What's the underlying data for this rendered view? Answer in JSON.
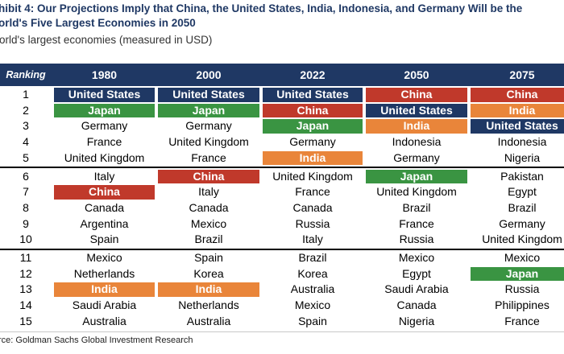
{
  "title": {
    "line1": "hibit 4: Our Projections Imply that China, the United States, India, Indonesia, and Germany Will be the",
    "line2": "orld's Five Largest Economies in 2050"
  },
  "subtitle": "orld's largest economies (measured in USD)",
  "source": "rce: Goldman Sachs Global Investment Research",
  "colors": {
    "header": "#1f3864",
    "United States": "#1f3864",
    "Japan": "#3a9442",
    "China": "#c0392b",
    "India": "#e9853a"
  },
  "chart_data": {
    "type": "table",
    "columns": [
      "Ranking",
      "1980",
      "2000",
      "2022",
      "2050",
      "2075"
    ],
    "rows": [
      [
        "1",
        "United States",
        "United States",
        "United States",
        "China",
        "China"
      ],
      [
        "2",
        "Japan",
        "Japan",
        "China",
        "United States",
        "India"
      ],
      [
        "3",
        "Germany",
        "Germany",
        "Japan",
        "India",
        "United States"
      ],
      [
        "4",
        "France",
        "United Kingdom",
        "Germany",
        "Indonesia",
        "Indonesia"
      ],
      [
        "5",
        "United Kingdom",
        "France",
        "India",
        "Germany",
        "Nigeria"
      ],
      [
        "6",
        "Italy",
        "China",
        "United Kingdom",
        "Japan",
        "Pakistan"
      ],
      [
        "7",
        "China",
        "Italy",
        "France",
        "United Kingdom",
        "Egypt"
      ],
      [
        "8",
        "Canada",
        "Canada",
        "Canada",
        "Brazil",
        "Brazil"
      ],
      [
        "9",
        "Argentina",
        "Mexico",
        "Russia",
        "France",
        "Germany"
      ],
      [
        "10",
        "Spain",
        "Brazil",
        "Italy",
        "Russia",
        "United Kingdom"
      ],
      [
        "11",
        "Mexico",
        "Spain",
        "Brazil",
        "Mexico",
        "Mexico"
      ],
      [
        "12",
        "Netherlands",
        "Korea",
        "Korea",
        "Egypt",
        "Japan"
      ],
      [
        "13",
        "India",
        "India",
        "Australia",
        "Saudi Arabia",
        "Russia"
      ],
      [
        "14",
        "Saudi Arabia",
        "Netherlands",
        "Mexico",
        "Canada",
        "Philippines"
      ],
      [
        "15",
        "Australia",
        "Australia",
        "Spain",
        "Nigeria",
        "France"
      ]
    ]
  }
}
